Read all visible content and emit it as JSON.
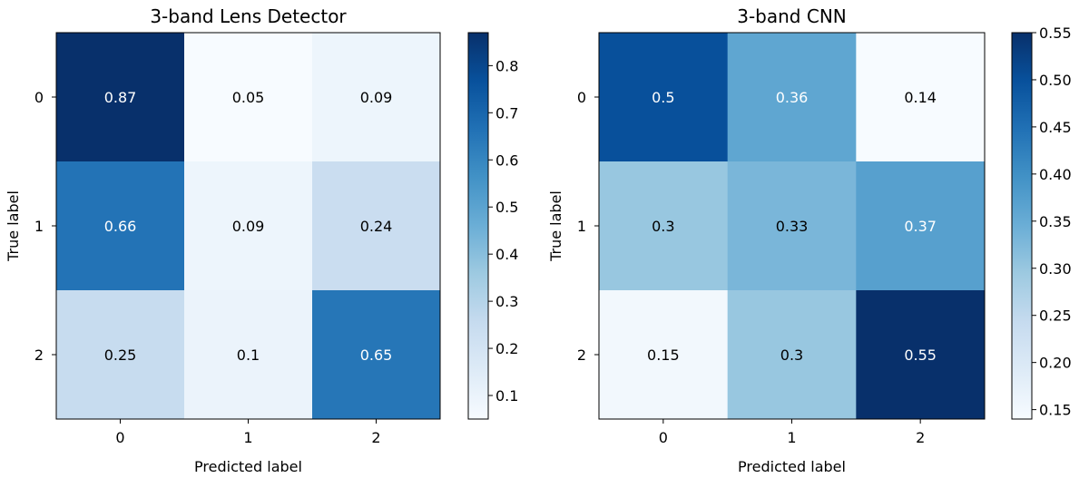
{
  "chart_data": [
    {
      "type": "heatmap",
      "title": "3-band Lens Detector",
      "xlabel": "Predicted label",
      "ylabel": "True label",
      "x_categories": [
        "0",
        "1",
        "2"
      ],
      "y_categories": [
        "0",
        "1",
        "2"
      ],
      "matrix": [
        [
          0.87,
          0.05,
          0.09
        ],
        [
          0.66,
          0.09,
          0.24
        ],
        [
          0.25,
          0.1,
          0.65
        ]
      ],
      "labels": [
        [
          "0.87",
          "0.05",
          "0.09"
        ],
        [
          "0.66",
          "0.09",
          "0.24"
        ],
        [
          "0.25",
          "0.1",
          "0.65"
        ]
      ],
      "colormap": "Blues",
      "vmin": 0.05,
      "vmax": 0.87,
      "colorbar_ticks": [
        "0.1",
        "0.2",
        "0.3",
        "0.4",
        "0.5",
        "0.6",
        "0.7",
        "0.8"
      ]
    },
    {
      "type": "heatmap",
      "title": "3-band CNN",
      "xlabel": "Predicted label",
      "ylabel": "True label",
      "x_categories": [
        "0",
        "1",
        "2"
      ],
      "y_categories": [
        "0",
        "1",
        "2"
      ],
      "matrix": [
        [
          0.5,
          0.36,
          0.14
        ],
        [
          0.3,
          0.33,
          0.37
        ],
        [
          0.15,
          0.3,
          0.55
        ]
      ],
      "labels": [
        [
          "0.5",
          "0.36",
          "0.14"
        ],
        [
          "0.3",
          "0.33",
          "0.37"
        ],
        [
          "0.15",
          "0.3",
          "0.55"
        ]
      ],
      "colormap": "Blues",
      "vmin": 0.14,
      "vmax": 0.55,
      "colorbar_ticks": [
        "0.15",
        "0.20",
        "0.25",
        "0.30",
        "0.35",
        "0.40",
        "0.45",
        "0.50",
        "0.55"
      ]
    }
  ],
  "colors": {
    "blues": [
      "#f7fbff",
      "#deebf7",
      "#c6dbef",
      "#9ecae1",
      "#6baed6",
      "#4292c6",
      "#2171b5",
      "#08519c",
      "#08306b"
    ],
    "text_dark": "#000000",
    "text_light": "#ffffff"
  }
}
